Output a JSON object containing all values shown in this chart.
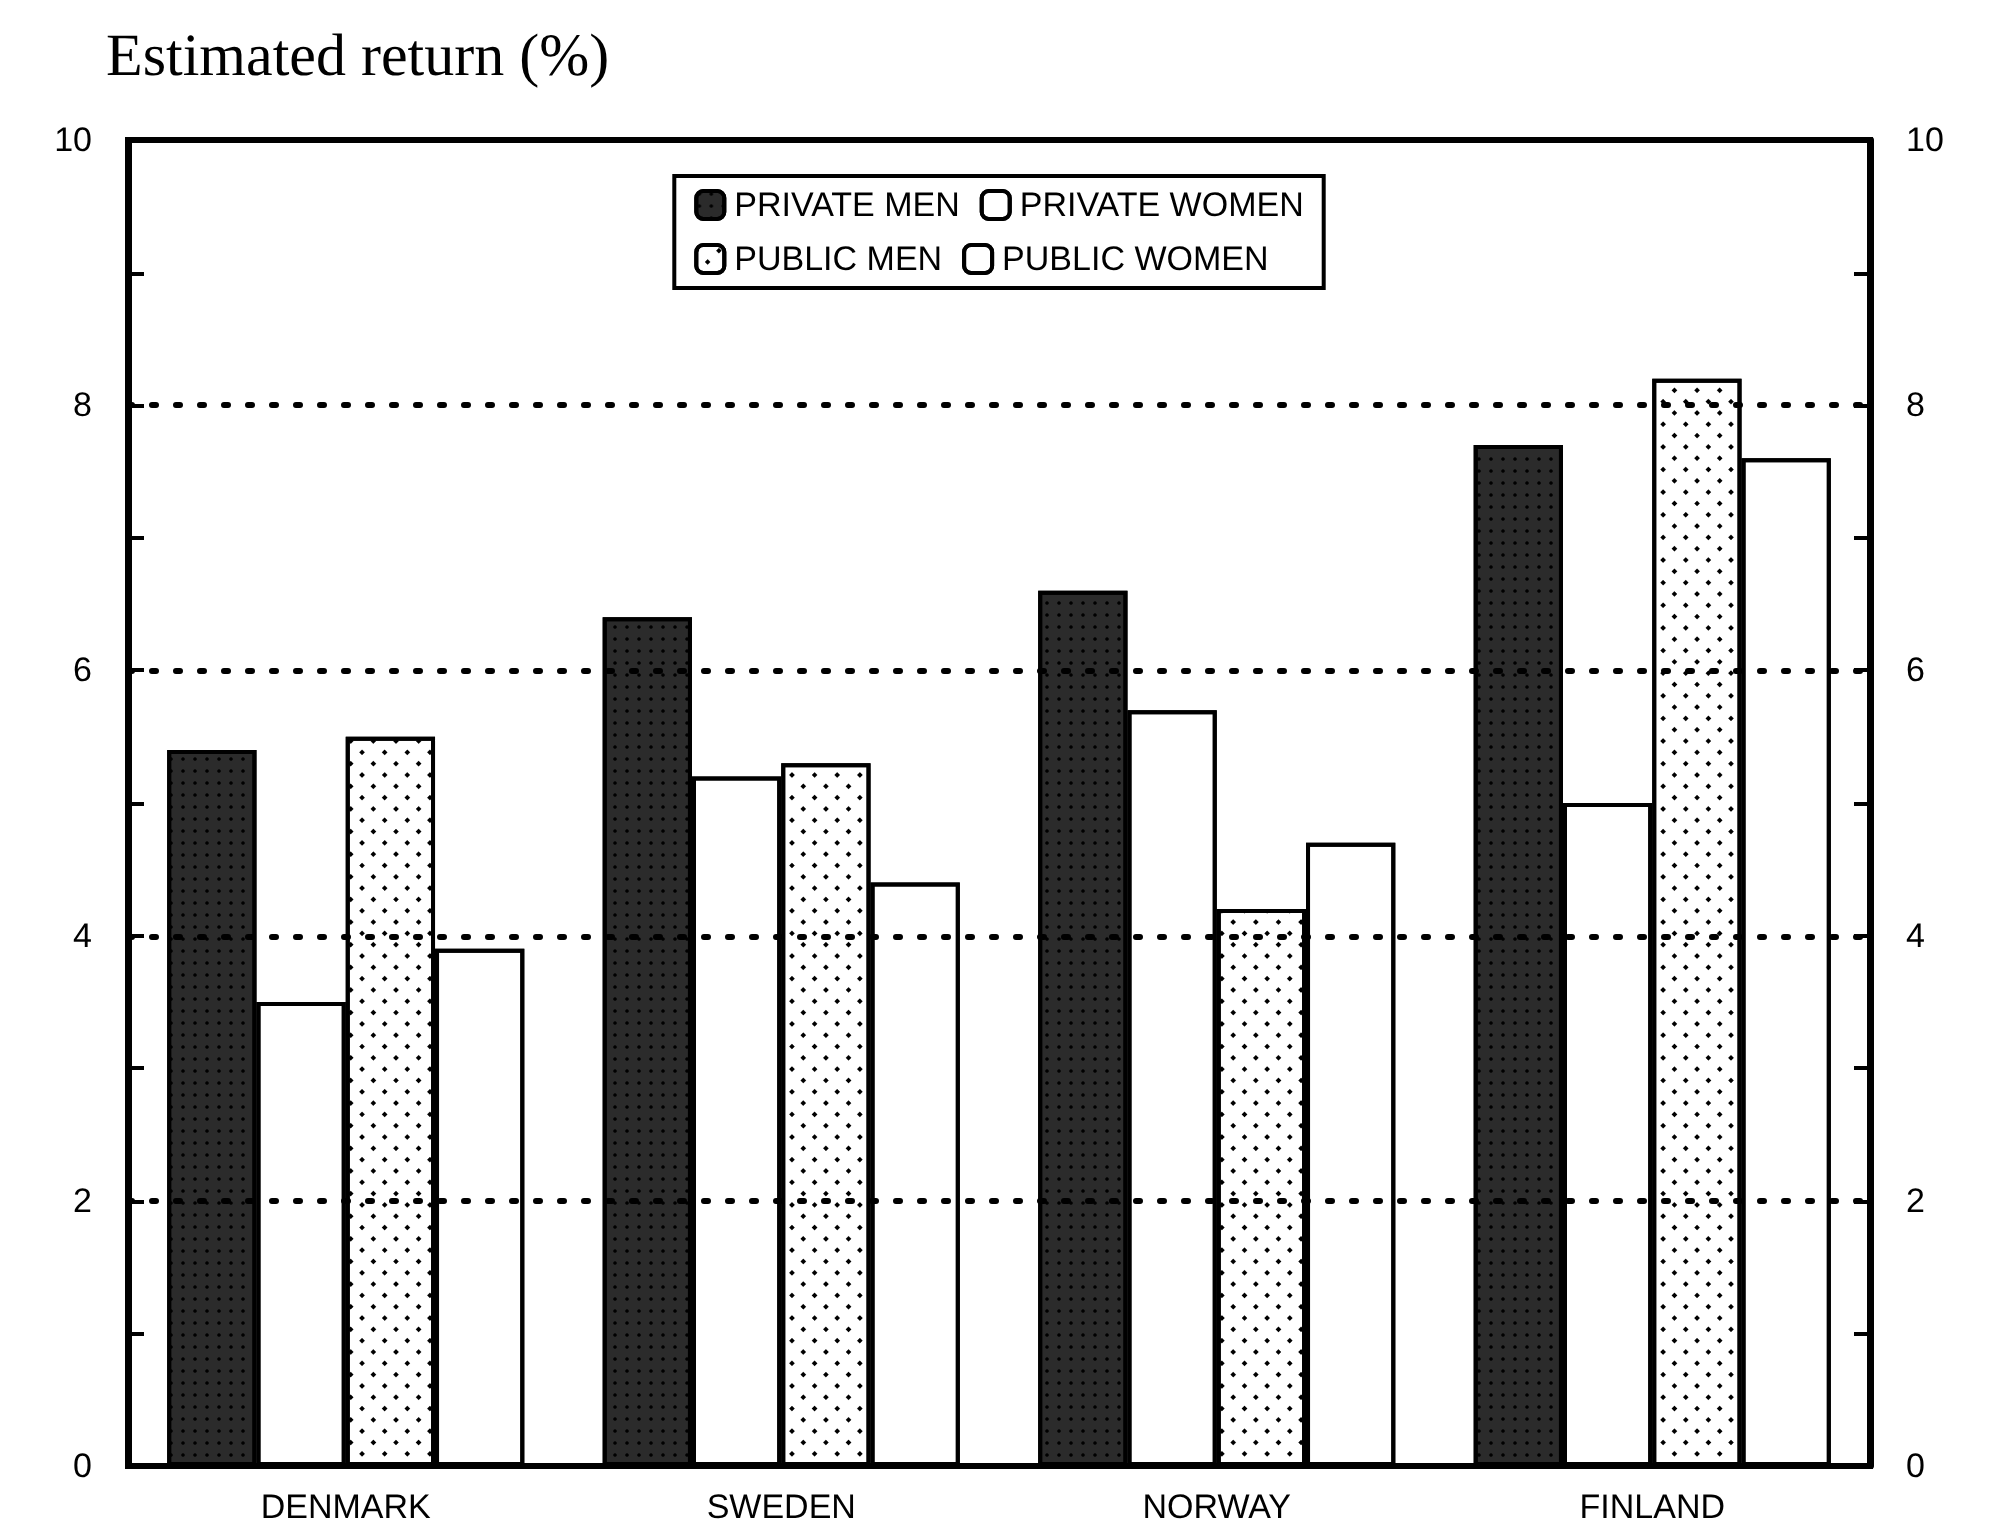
{
  "chart_data": {
    "type": "bar",
    "title": "Estimated return (%)",
    "categories": [
      "DENMARK",
      "SWEDEN",
      "NORWAY",
      "FINLAND"
    ],
    "series": [
      {
        "name": "PRIVATE MEN",
        "color": "#2b2b2b",
        "values": [
          5.4,
          6.4,
          6.6,
          7.7
        ]
      },
      {
        "name": "PRIVATE WOMEN",
        "color": "#ffffff",
        "values": [
          3.5,
          5.2,
          5.7,
          5.0
        ]
      },
      {
        "name": "PUBLIC MEN",
        "color": "#ffffff",
        "values": [
          5.5,
          5.3,
          4.2,
          8.2
        ]
      },
      {
        "name": "PUBLIC WOMEN",
        "color": "#ffffff",
        "values": [
          3.9,
          4.4,
          4.7,
          7.6
        ]
      }
    ],
    "ylim": [
      0,
      10
    ],
    "yticks": [
      0,
      {
        "value": 1,
        "label": null
      },
      2,
      {
        "value": 3,
        "label": null
      },
      4,
      {
        "value": 5,
        "label": null
      },
      6,
      {
        "value": 7,
        "label": null
      },
      8,
      {
        "value": 9,
        "label": null
      },
      10
    ],
    "y2lim": [
      0,
      10
    ],
    "y2ticks": [
      0,
      {
        "value": 1,
        "label": null
      },
      2,
      {
        "value": 3,
        "label": null
      },
      4,
      {
        "value": 5,
        "label": null
      },
      6,
      {
        "value": 7,
        "label": null
      },
      8,
      {
        "value": 9,
        "label": null
      },
      10
    ],
    "grid": "y",
    "legend": "top"
  }
}
